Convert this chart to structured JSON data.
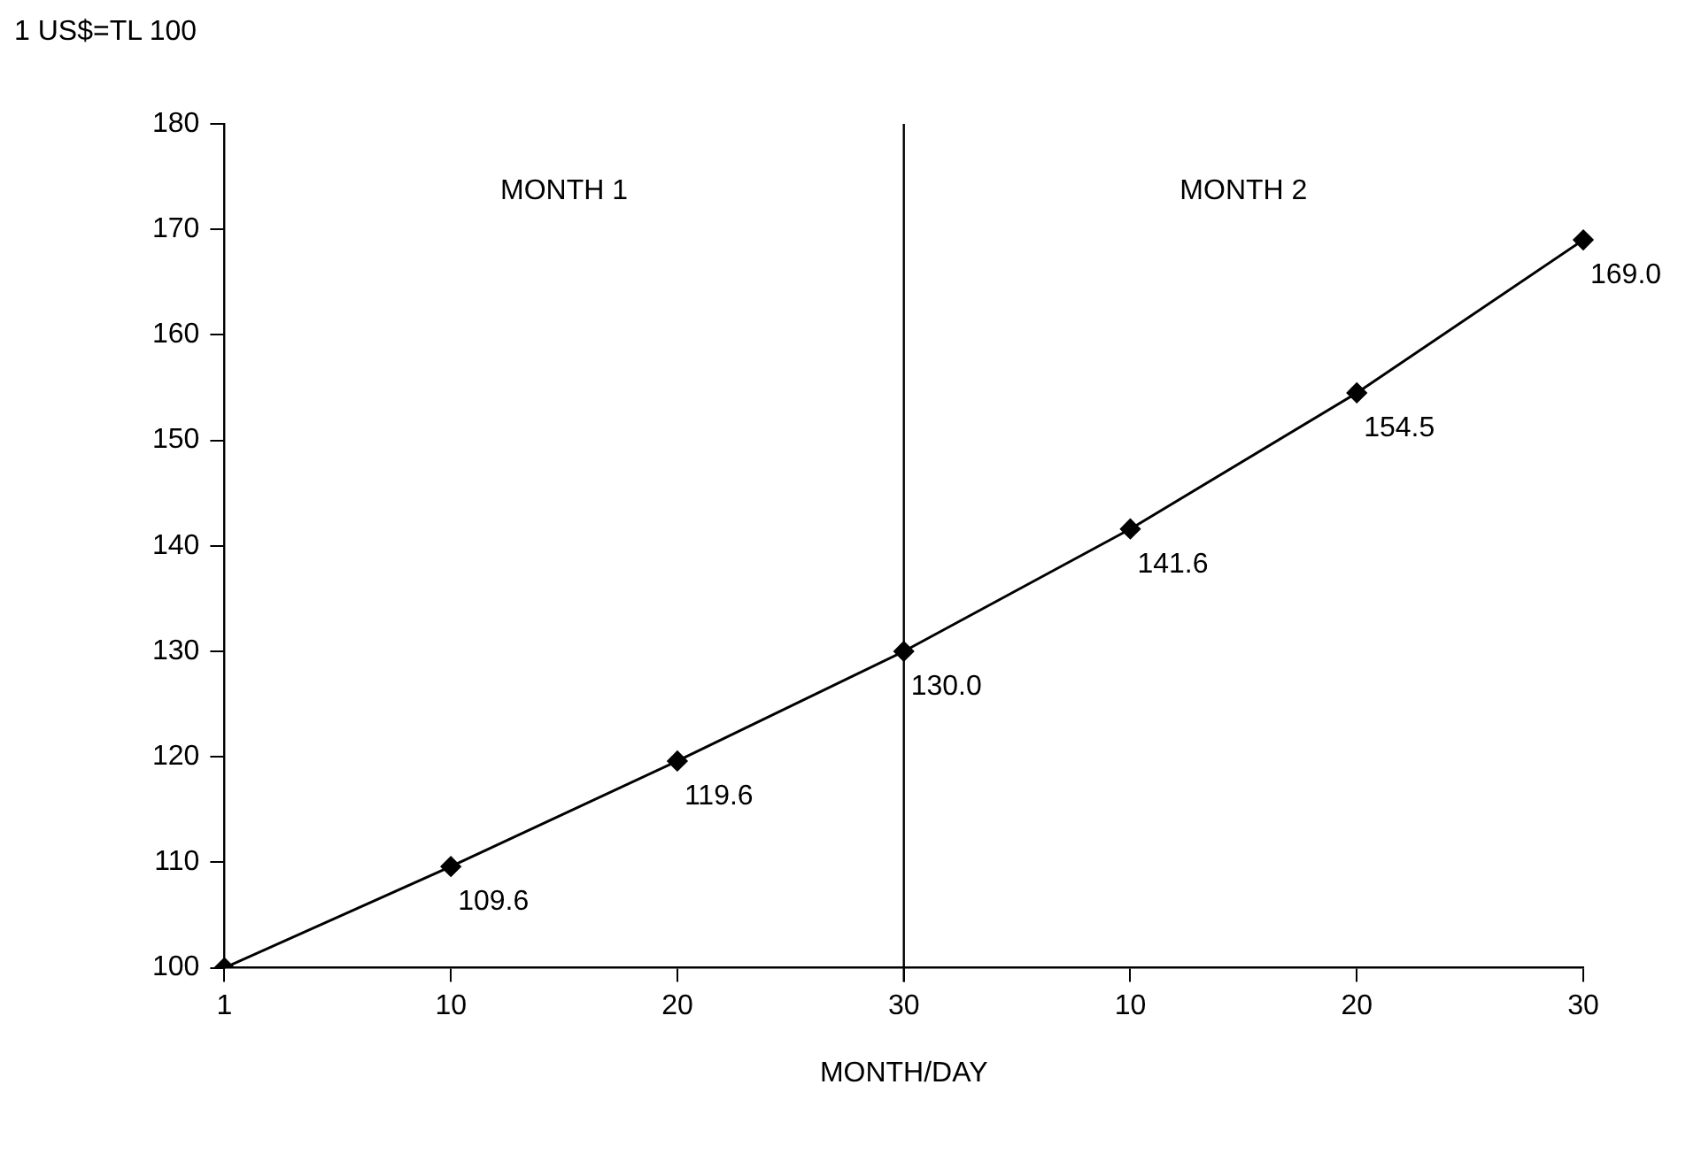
{
  "chart_data": {
    "type": "line",
    "ylabel": "1 US$=TL 100",
    "xlabel": "MONTH/DAY",
    "categories": [
      "1",
      "10",
      "20",
      "30",
      "10",
      "20",
      "30"
    ],
    "series": [
      {
        "color": "#000000",
        "values": [
          100,
          109.6,
          119.6,
          130.0,
          141.6,
          154.5,
          169.0
        ],
        "value_labels": [
          null,
          "109.6",
          "119.6",
          "130.0",
          "141.6",
          "154.5",
          "169.0"
        ]
      }
    ],
    "ylim": [
      100,
      180
    ],
    "yticks": [
      100,
      110,
      120,
      130,
      140,
      150,
      160,
      170,
      180
    ],
    "ref_lines": [
      {
        "axis": "x",
        "value": "30",
        "color": "#000000"
      }
    ],
    "annotations": [
      "MONTH 1",
      "MONTH 2"
    ],
    "marker": "diamond",
    "line_style": "solid",
    "legend": false
  }
}
